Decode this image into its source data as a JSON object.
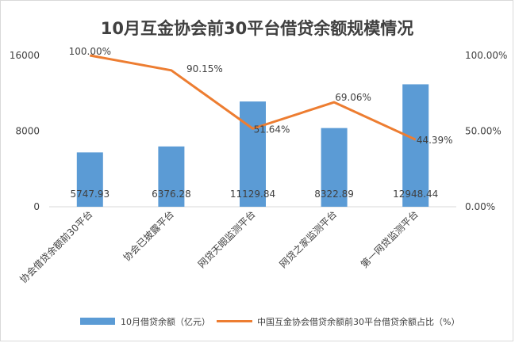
{
  "chart_data": {
    "type": "bar",
    "title": "10月互金协会前30平台借贷余额规模情况",
    "categories": [
      "协会借贷余额前30平台",
      "协会已披露平台",
      "网贷天眼监测平台",
      "网贷之家监测平台",
      "第一网贷监测平台"
    ],
    "series": [
      {
        "name": "10月借贷余额（亿元）",
        "type": "bar",
        "axis": "left",
        "values": [
          5747.93,
          6376.28,
          11129.84,
          8322.89,
          12948.44
        ],
        "labels": [
          "5747.93",
          "6376.28",
          "11129.84",
          "8322.89",
          "12948.44"
        ]
      },
      {
        "name": "中国互金协会借贷余额前30平台借贷余额占比（%）",
        "type": "line",
        "axis": "right",
        "values": [
          100.0,
          90.15,
          51.64,
          69.06,
          44.39
        ],
        "labels": [
          "100.00%",
          "90.15%",
          "51.64%",
          "69.06%",
          "44.39%"
        ]
      }
    ],
    "y_left": {
      "min": 0,
      "max": 16000,
      "ticks": [
        "0",
        "8000",
        "16000"
      ]
    },
    "y_right": {
      "min": 0,
      "max": 100,
      "ticks": [
        "0.00%",
        "50.00%",
        "100.00%"
      ]
    },
    "colors": {
      "bar": "#5b9bd5",
      "line": "#ed7d31",
      "axis": "#d9d9d9",
      "text": "#404040"
    },
    "legend_position": "bottom"
  }
}
